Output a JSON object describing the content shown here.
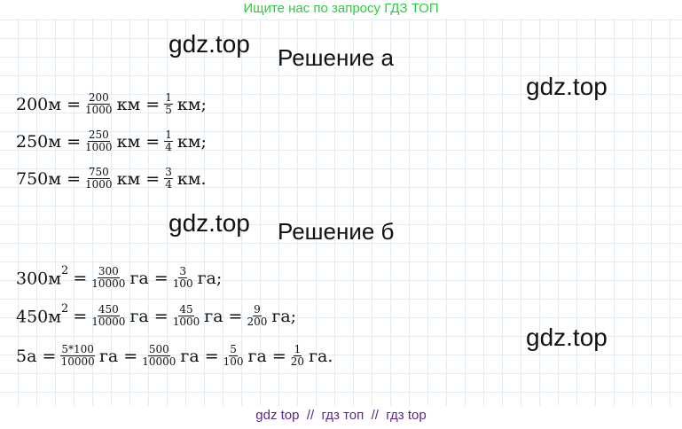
{
  "header": {
    "banner": "Ищите нас по запросу ГДЗ ТОП"
  },
  "watermarks": [
    "gdz.top",
    "gdz.top",
    "gdz.top",
    "gdz.top"
  ],
  "sections": [
    {
      "title": "Решение а",
      "lines": [
        [
          {
            "text": "200м ="
          },
          {
            "num": "200",
            "den": "1000"
          },
          {
            "text": "км ="
          },
          {
            "num": "1",
            "den": "5"
          },
          {
            "text": "км;"
          }
        ],
        [
          {
            "text": "250м ="
          },
          {
            "num": "250",
            "den": "1000"
          },
          {
            "text": "км ="
          },
          {
            "num": "1",
            "den": "4"
          },
          {
            "text": "км;"
          }
        ],
        [
          {
            "text": "750м ="
          },
          {
            "num": "750",
            "den": "1000"
          },
          {
            "text": "км ="
          },
          {
            "num": "3",
            "den": "4"
          },
          {
            "text": "км."
          }
        ]
      ]
    },
    {
      "title": "Решение б",
      "lines": [
        [
          {
            "text": "300м",
            "sup": "2"
          },
          {
            "text": "="
          },
          {
            "num": "300",
            "den": "10000"
          },
          {
            "text": "га ="
          },
          {
            "num": "3",
            "den": "100"
          },
          {
            "text": "га;"
          }
        ],
        [
          {
            "text": "450м",
            "sup": "2"
          },
          {
            "text": "="
          },
          {
            "num": "450",
            "den": "10000"
          },
          {
            "text": "га ="
          },
          {
            "num": "45",
            "den": "1000"
          },
          {
            "text": "га ="
          },
          {
            "num": "9",
            "den": "200"
          },
          {
            "text": "га;"
          }
        ],
        [
          {
            "text": "5а ="
          },
          {
            "num": "5*100",
            "den": "10000"
          },
          {
            "text": "га ="
          },
          {
            "num": "500",
            "den": "10000"
          },
          {
            "text": "га ="
          },
          {
            "num": "5",
            "den": "100"
          },
          {
            "text": "га ="
          },
          {
            "num": "1",
            "den": "20"
          },
          {
            "text": "га."
          }
        ]
      ]
    }
  ],
  "footer": "gdz top  //  гдз топ  //  гдз top"
}
